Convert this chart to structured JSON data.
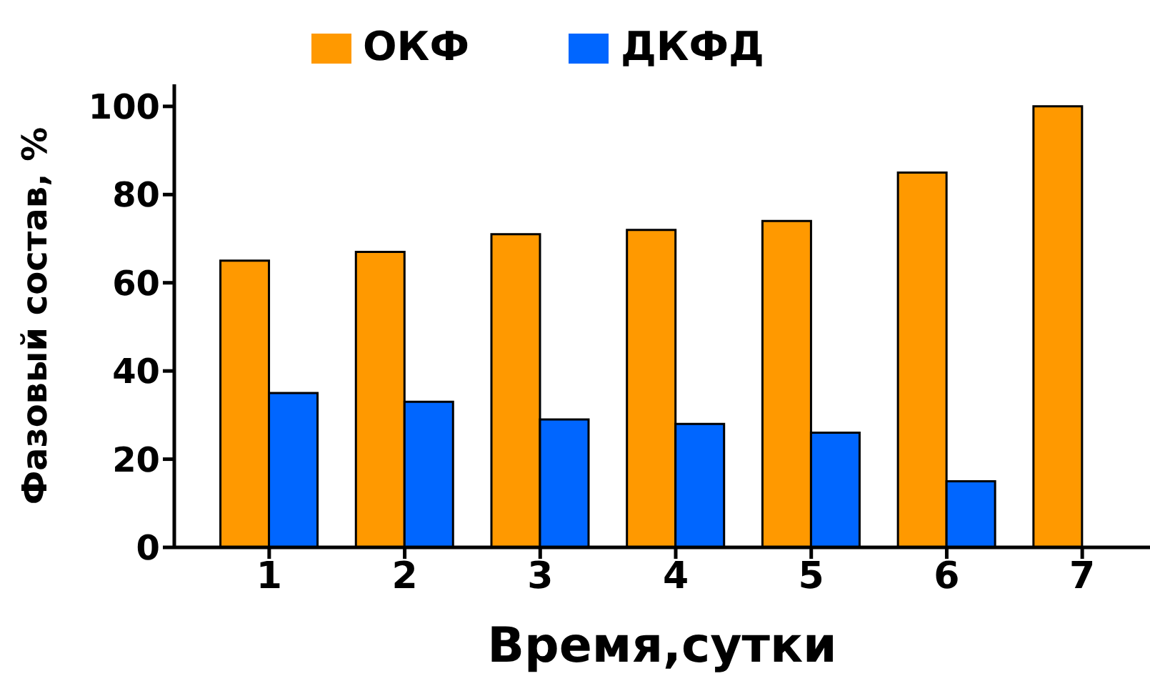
{
  "chart_data": {
    "type": "bar",
    "xlabel": "Время,сутки",
    "ylabel": "Фазовый состав, %",
    "categories": [
      "1",
      "2",
      "3",
      "4",
      "5",
      "6",
      "7"
    ],
    "series": [
      {
        "name": "ОКФ",
        "color": "#ff9900",
        "values": [
          65,
          67,
          71,
          72,
          74,
          85,
          100
        ]
      },
      {
        "name": "ДКФД",
        "color": "#0066ff",
        "values": [
          35,
          33,
          29,
          28,
          26,
          15,
          0
        ]
      }
    ],
    "ylim": [
      0,
      105
    ],
    "yticks": [
      0,
      20,
      40,
      60,
      80,
      100
    ],
    "grid": false,
    "legend": "top"
  }
}
